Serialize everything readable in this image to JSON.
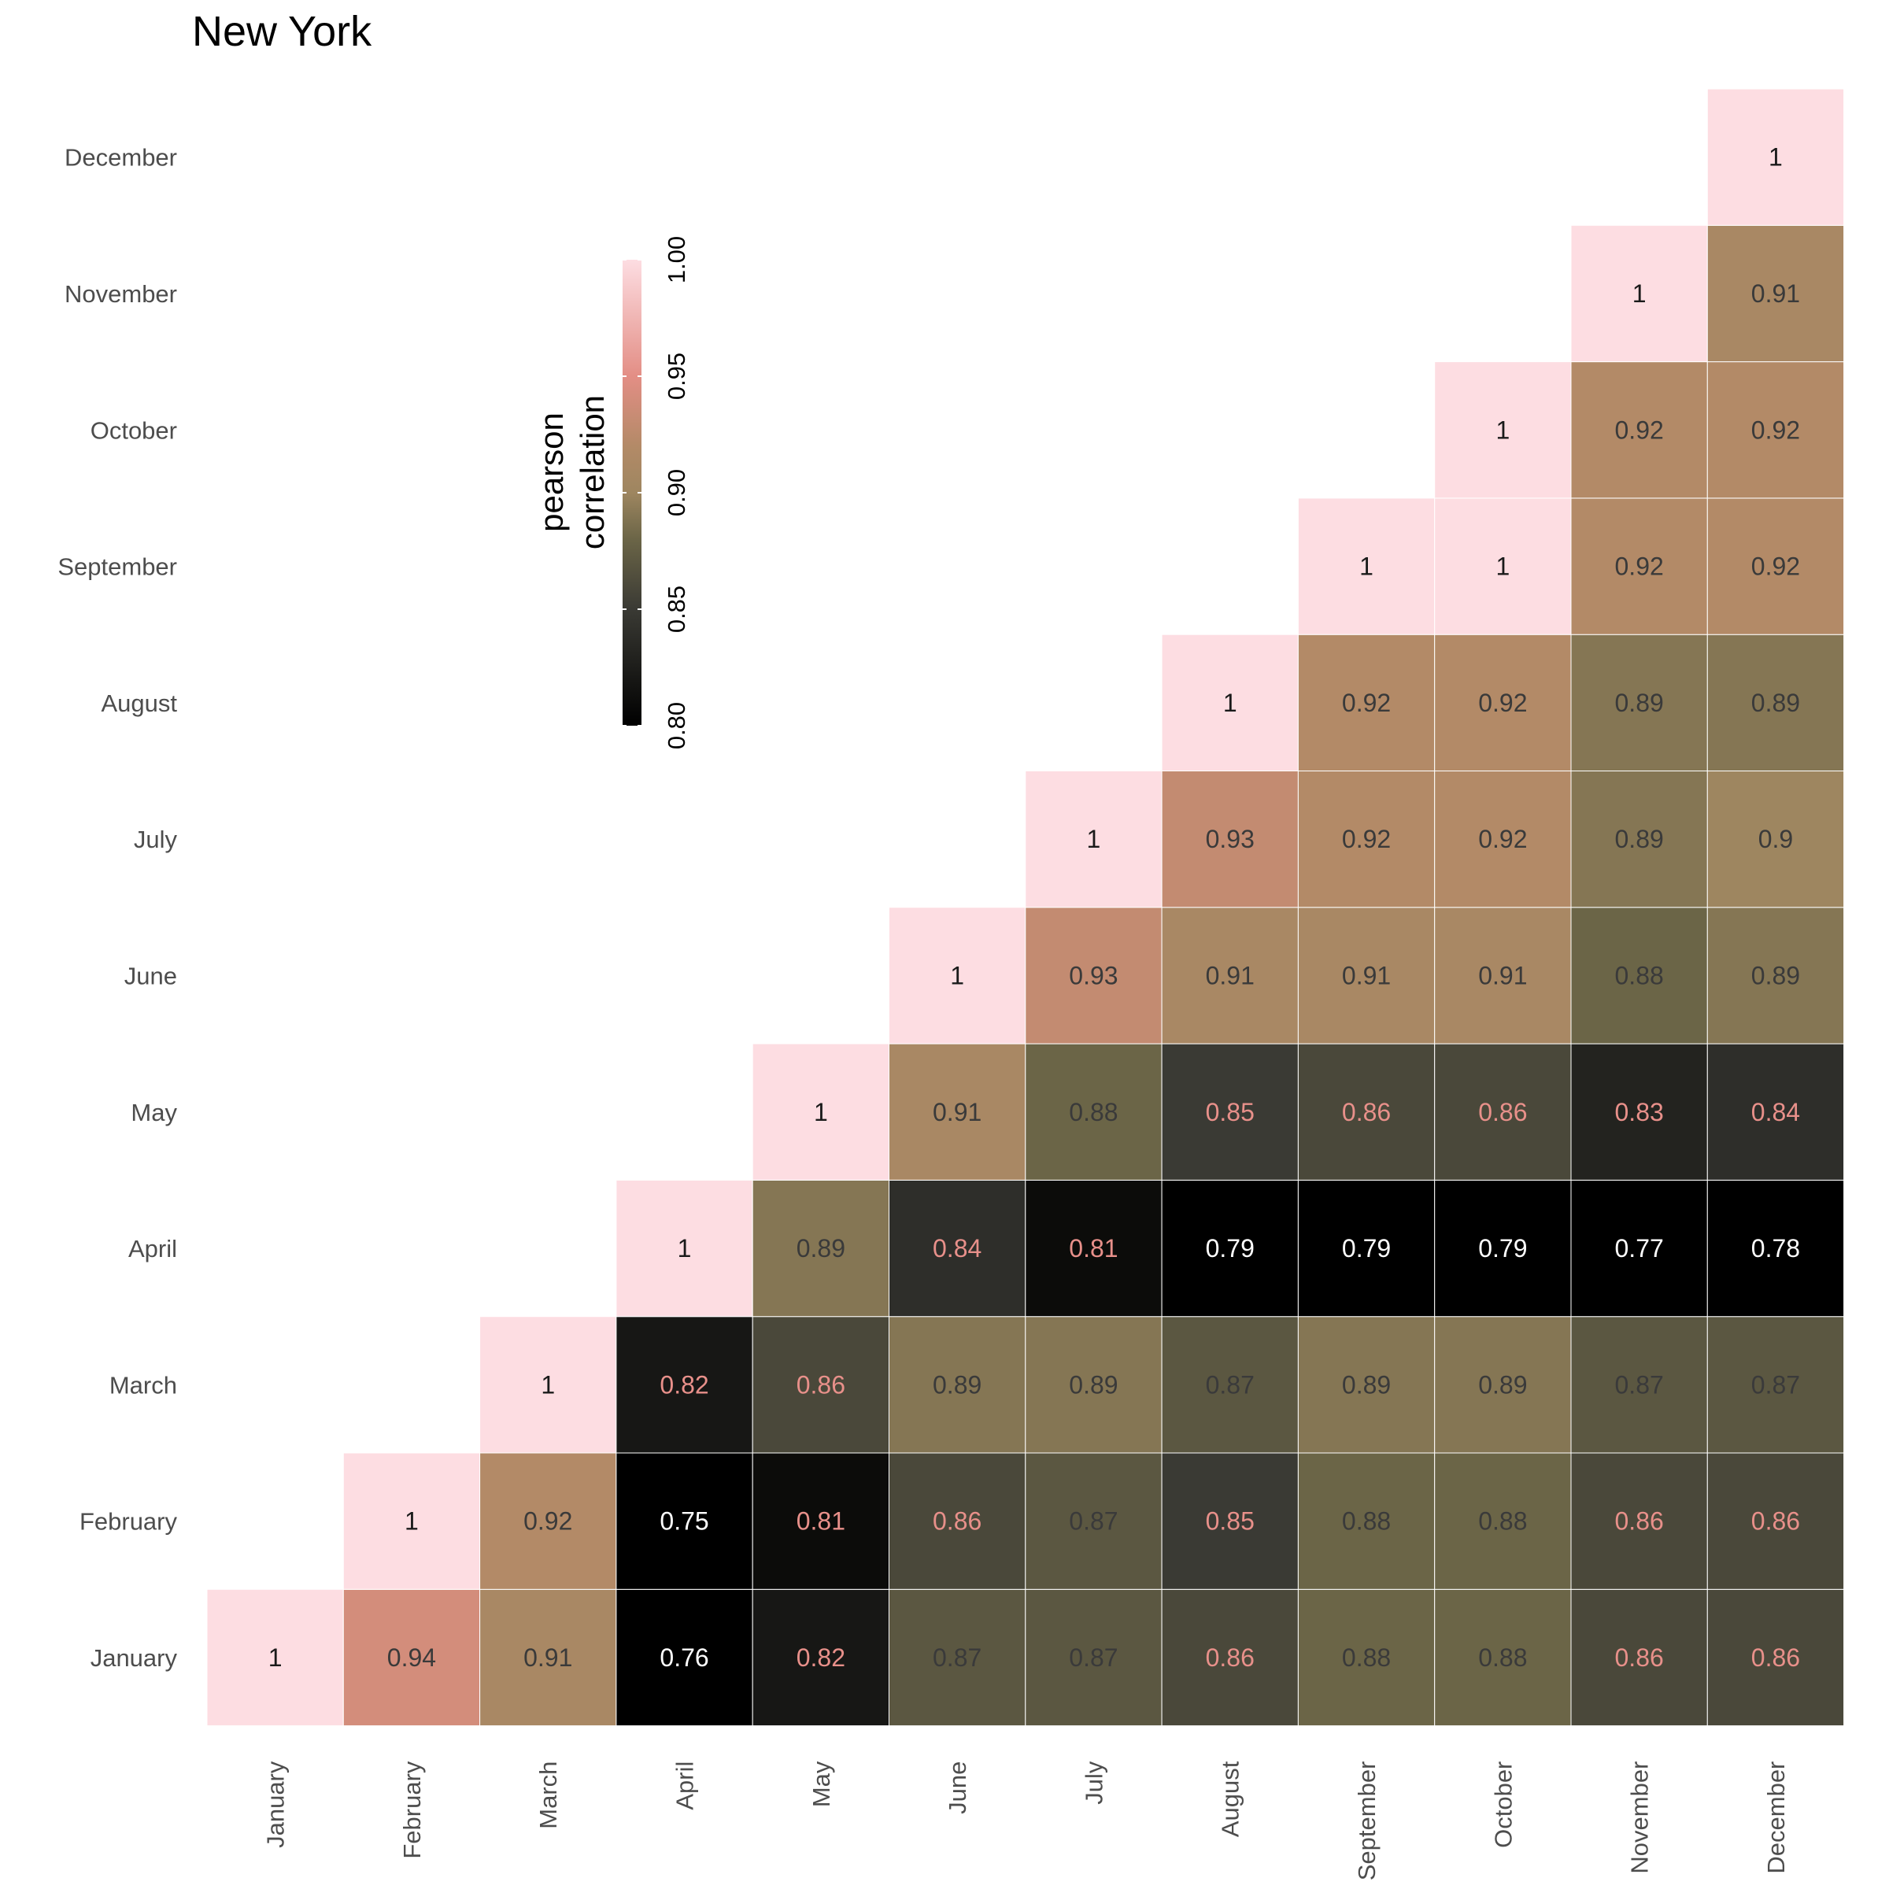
{
  "chart_data": {
    "type": "heatmap",
    "title": "New York",
    "categories": [
      "January",
      "February",
      "March",
      "April",
      "May",
      "June",
      "July",
      "August",
      "September",
      "October",
      "November",
      "December"
    ],
    "matrix_orientation": "upper triangle: values[row][col] shown where col >= row; rows are y axis (January at bottom), columns are x axis",
    "values": [
      [
        1,
        0.94,
        0.91,
        0.76,
        0.82,
        0.87,
        0.87,
        0.86,
        0.88,
        0.88,
        0.86,
        0.86
      ],
      [
        null,
        1,
        0.92,
        0.75,
        0.81,
        0.86,
        0.87,
        0.85,
        0.88,
        0.88,
        0.86,
        0.86
      ],
      [
        null,
        null,
        1,
        0.82,
        0.86,
        0.89,
        0.89,
        0.87,
        0.89,
        0.89,
        0.87,
        0.87
      ],
      [
        null,
        null,
        null,
        1,
        0.89,
        0.84,
        0.81,
        0.79,
        0.79,
        0.79,
        0.77,
        0.78
      ],
      [
        null,
        null,
        null,
        null,
        1,
        0.91,
        0.88,
        0.85,
        0.86,
        0.86,
        0.83,
        0.84
      ],
      [
        null,
        null,
        null,
        null,
        null,
        1,
        0.93,
        0.91,
        0.91,
        0.91,
        0.88,
        0.89
      ],
      [
        null,
        null,
        null,
        null,
        null,
        null,
        1,
        0.93,
        0.92,
        0.92,
        0.89,
        0.9
      ],
      [
        null,
        null,
        null,
        null,
        null,
        null,
        null,
        1,
        0.92,
        0.92,
        0.89,
        0.89
      ],
      [
        null,
        null,
        null,
        null,
        null,
        null,
        null,
        null,
        1,
        1,
        0.92,
        0.92
      ],
      [
        null,
        null,
        null,
        null,
        null,
        null,
        null,
        null,
        null,
        1,
        0.92,
        0.92
      ],
      [
        null,
        null,
        null,
        null,
        null,
        null,
        null,
        null,
        null,
        null,
        1,
        0.91
      ],
      [
        null,
        null,
        null,
        null,
        null,
        null,
        null,
        null,
        null,
        null,
        null,
        1
      ]
    ],
    "legend": {
      "title_lines": [
        "pearson",
        "correlation"
      ],
      "range": [
        0.8,
        1.0
      ],
      "ticks": [
        "0.80",
        "0.85",
        "0.90",
        "0.95",
        "1.00"
      ],
      "tick_values": [
        0.8,
        0.85,
        0.9,
        0.95,
        1.0
      ],
      "placement": "top-left, inside plot area, vertical"
    },
    "colors": {
      "low": "#000000",
      "mid": "#9e8660",
      "high": "#fddde2",
      "scale_stops": [
        {
          "v": 0.8,
          "c": "#000000"
        },
        {
          "v": 0.85,
          "c": "#3a3a34"
        },
        {
          "v": 0.88,
          "c": "#6b6547"
        },
        {
          "v": 0.9,
          "c": "#9e8660"
        },
        {
          "v": 0.92,
          "c": "#b38a67"
        },
        {
          "v": 0.95,
          "c": "#e38e85"
        },
        {
          "v": 1.0,
          "c": "#fddde2"
        }
      ],
      "label_low": "#ffffff",
      "label_mid": "#e8908a",
      "label_high": "#3a3a3a"
    },
    "grid": false
  }
}
